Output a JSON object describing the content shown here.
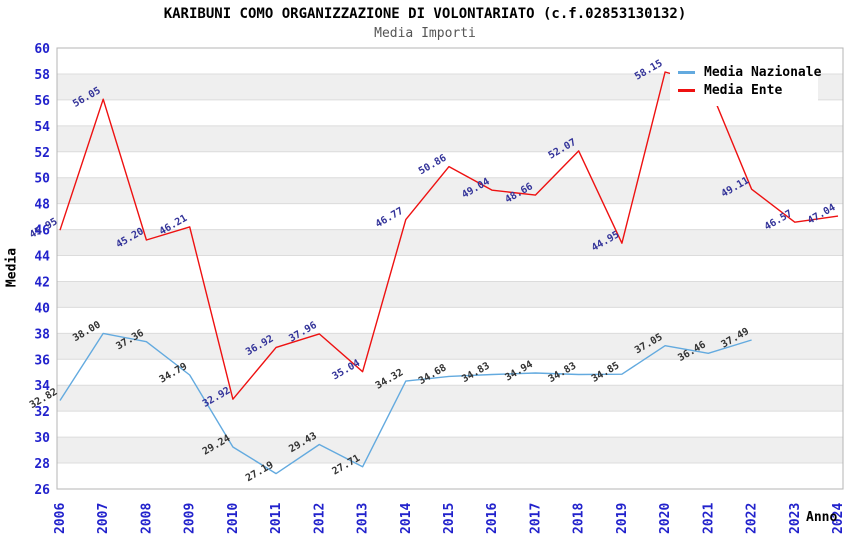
{
  "title": "KARIBUNI COMO ORGANIZZAZIONE DI VOLONTARIATO (c.f.02853130132)",
  "subtitle": "Media Importi",
  "legend": {
    "position": "top-right",
    "items": [
      {
        "label": "Media Nazionale",
        "color": "#63AADF"
      },
      {
        "label": "Media Ente",
        "color": "#EE1111"
      }
    ]
  },
  "colors": {
    "background": "#ffffff",
    "band_gray": "#efefef",
    "gridline": "#dcdcdc",
    "plot_border": "#b5b5b5",
    "axis_tick_text": "#2222cc",
    "nazionale_line": "#63AADF",
    "nazionale_label_text": "#333333",
    "ente_line": "#EE1111",
    "ente_label_text": "#333399"
  },
  "chart_data": {
    "type": "line",
    "title": "KARIBUNI COMO ORGANIZZAZIONE DI VOLONTARIATO (c.f.02853130132)",
    "subtitle": "Media Importi",
    "xlabel": "Anno",
    "ylabel": "Media",
    "ylim": [
      26,
      60
    ],
    "ytick_step": 2,
    "y_ticks": [
      26,
      28,
      30,
      32,
      34,
      36,
      38,
      40,
      42,
      44,
      46,
      48,
      50,
      52,
      54,
      56,
      58,
      60
    ],
    "x": [
      2006,
      2007,
      2008,
      2009,
      2010,
      2011,
      2012,
      2013,
      2014,
      2015,
      2016,
      2017,
      2018,
      2019,
      2020,
      2021,
      2022,
      2023,
      2024
    ],
    "grid": "horizontal gridlines with alternating gray/white bands every 2 units",
    "legend_position": "top-right inside plot",
    "series": [
      {
        "name": "Media Nazionale",
        "color": "#63AADF",
        "label_color": "#333333",
        "values": [
          32.82,
          38.0,
          37.36,
          34.79,
          29.24,
          27.19,
          29.43,
          27.71,
          34.32,
          34.68,
          34.83,
          34.94,
          34.83,
          34.85,
          37.05,
          36.46,
          37.49,
          null,
          null
        ],
        "label_hidden_years": []
      },
      {
        "name": "Media Ente",
        "color": "#EE1111",
        "label_color": "#333399",
        "values": [
          45.95,
          56.05,
          45.2,
          46.21,
          32.92,
          36.92,
          37.96,
          35.04,
          46.77,
          50.86,
          49.04,
          48.66,
          52.07,
          44.95,
          58.15,
          57.2,
          49.11,
          46.57,
          47.04
        ],
        "label_hidden_years": [
          2021
        ]
      }
    ],
    "notes": "Media Nazionale series has no data for 2023-2024. Media Ente 2021 vertex and its label are hidden behind the legend box; value ~57.2 estimated from line slope."
  }
}
